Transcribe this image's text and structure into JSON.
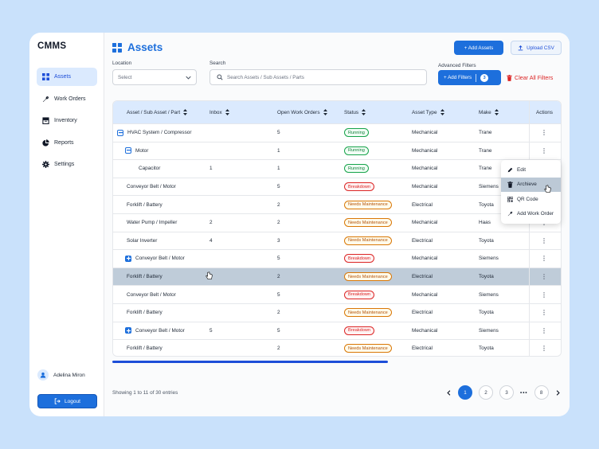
{
  "app": {
    "name": "CMMS"
  },
  "sidebar": {
    "items": [
      {
        "label": "Assets",
        "icon": "grid-icon"
      },
      {
        "label": "Work Orders",
        "icon": "wrench-icon"
      },
      {
        "label": "Inventory",
        "icon": "inventory-icon"
      },
      {
        "label": "Reports",
        "icon": "pie-chart-icon"
      },
      {
        "label": "Settings",
        "icon": "gear-icon"
      }
    ],
    "user_name": "Adelina Miron",
    "logout_label": "Logout"
  },
  "header": {
    "title": "Assets",
    "add_assets_label": "+ Add Assets",
    "upload_csv_label": "Upload CSV"
  },
  "filters": {
    "location_label": "Location",
    "location_placeholder": "Select",
    "search_label": "Search",
    "search_placeholder": "Search Assets / Sub Assets / Parts",
    "advanced_label": "Advanced Filters",
    "add_filters_label": "+ Add Filters",
    "filter_count": "3",
    "clear_label": "Clear All Filters"
  },
  "table": {
    "headers": [
      "Asset / Sub Asset / Part",
      "Inbox",
      "Open Work Orders",
      "Status",
      "Asset Type",
      "Make",
      "Actions"
    ],
    "rows": [
      {
        "asset": "HVAC System / Compressor",
        "inbox": "",
        "open": "5",
        "status": "Running",
        "type": "Mechanical",
        "make": "Trane"
      },
      {
        "asset": "Motor",
        "inbox": "",
        "open": "1",
        "status": "Running",
        "type": "Mechanical",
        "make": "Trane"
      },
      {
        "asset": "Capacitor",
        "inbox": "1",
        "open": "1",
        "status": "Running",
        "type": "Mechanical",
        "make": "Trane"
      },
      {
        "asset": "Conveyor Belt / Motor",
        "inbox": "",
        "open": "5",
        "status": "Breakdown",
        "type": "Mechanical",
        "make": "Siemens"
      },
      {
        "asset": "Forklift / Battery",
        "inbox": "",
        "open": "2",
        "status": "Needs Maintenance",
        "type": "Electrical",
        "make": "Toyota"
      },
      {
        "asset": "Water Pump / Impeller",
        "inbox": "2",
        "open": "2",
        "status": "Needs Maintenance",
        "type": "Mechanical",
        "make": "Haas"
      },
      {
        "asset": "Solar Inverter",
        "inbox": "4",
        "open": "3",
        "status": "Needs Maintenance",
        "type": "Electrical",
        "make": "Toyota"
      },
      {
        "asset": "Conveyor Belt / Motor",
        "inbox": "",
        "open": "5",
        "status": "Breakdown",
        "type": "Mechanical",
        "make": "Siemens"
      },
      {
        "asset": "Forklift / Battery",
        "inbox": "",
        "open": "2",
        "status": "Needs Maintenance",
        "type": "Electrical",
        "make": "Toyota"
      },
      {
        "asset": "Conveyor Belt / Motor",
        "inbox": "",
        "open": "5",
        "status": "Breakdown",
        "type": "Mechanical",
        "make": "Siemens"
      },
      {
        "asset": "Forklift / Battery",
        "inbox": "",
        "open": "2",
        "status": "Needs Maintenance",
        "type": "Electrical",
        "make": "Toyota"
      },
      {
        "asset": "Conveyor Belt / Motor",
        "inbox": "5",
        "open": "5",
        "status": "Breakdown",
        "type": "Mechanical",
        "make": "Siemens"
      },
      {
        "asset": "Forklift / Battery",
        "inbox": "",
        "open": "2",
        "status": "Needs Maintenance",
        "type": "Electrical",
        "make": "Toyota"
      }
    ]
  },
  "context_menu": {
    "items": [
      {
        "label": "Edit",
        "icon": "pencil-icon"
      },
      {
        "label": "Archieve",
        "icon": "trash-icon"
      },
      {
        "label": "QR Code",
        "icon": "qr-code-icon"
      },
      {
        "label": "Add Work Order",
        "icon": "wrench-icon"
      }
    ]
  },
  "footer": {
    "showing": "Showing 1 to 11 of 30 entries",
    "pages": [
      "1",
      "2",
      "3",
      "8"
    ],
    "ellipsis": "•••"
  },
  "colors": {
    "accent": "#1d6fdc",
    "background": "#c9e1fb",
    "danger": "#dc2626"
  }
}
